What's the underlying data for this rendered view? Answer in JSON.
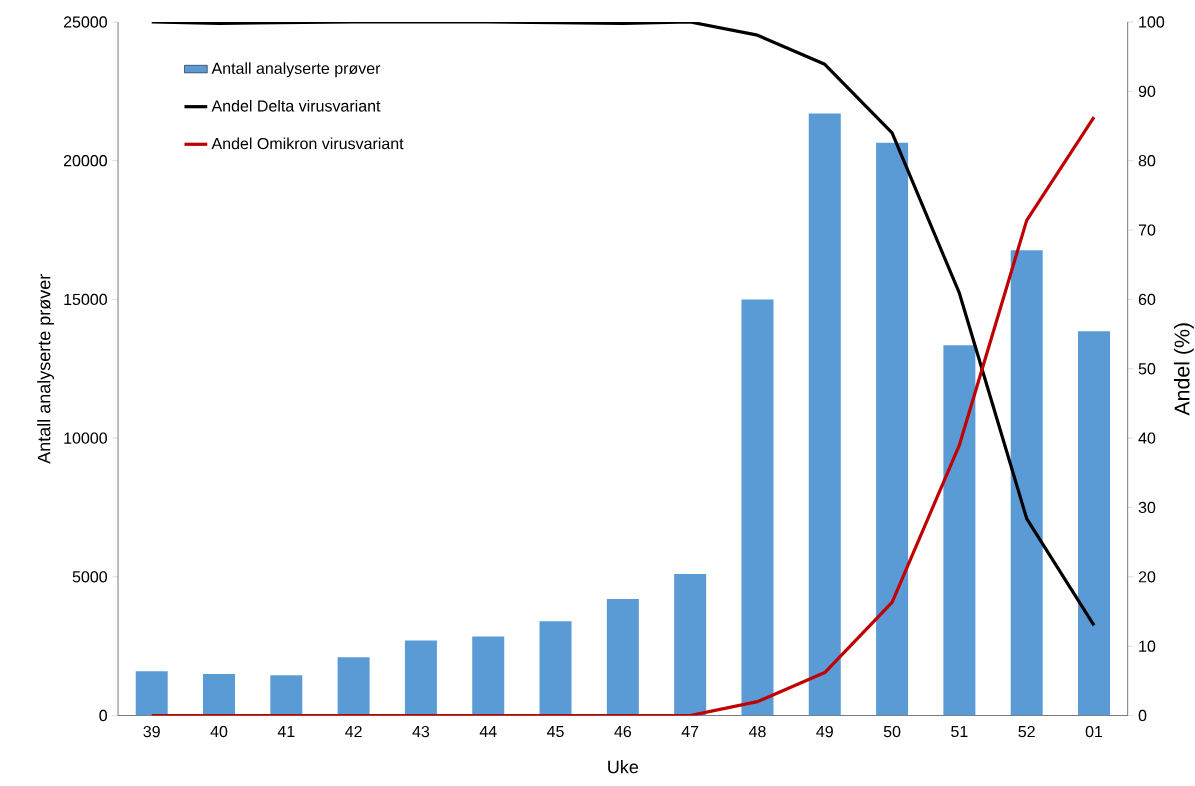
{
  "chart_data": {
    "type": "bar",
    "xlabel": "Uke",
    "ylabel": "Antall analyserte prøver",
    "y2label": "Andel (%)",
    "categories": [
      "39",
      "40",
      "41",
      "42",
      "43",
      "44",
      "45",
      "46",
      "47",
      "48",
      "49",
      "50",
      "51",
      "52",
      "01"
    ],
    "series": [
      {
        "name": "Antall analyserte prøver",
        "color": "#5b9bd5",
        "values": [
          1600,
          1500,
          1450,
          2100,
          2700,
          2850,
          3400,
          4200,
          5100,
          15000,
          21700,
          20650,
          13350,
          16770,
          13850
        ]
      },
      {
        "name": "Andel Delta virusvariant",
        "type": "line",
        "axis": "y2",
        "color": "#000000",
        "values": [
          100,
          99.8,
          99.9,
          100,
          100,
          100,
          99.9,
          99.8,
          100,
          98.1,
          93.9,
          84,
          60.9,
          28.4,
          13
        ]
      },
      {
        "name": "Andel Omikron virusvariant",
        "type": "line",
        "axis": "y2",
        "color": "#c00000",
        "values": [
          0,
          0,
          0,
          0,
          0,
          0,
          0,
          0,
          0,
          2,
          6.2,
          16.3,
          39,
          71.4,
          86.3
        ]
      }
    ],
    "ylim": [
      0,
      25000
    ],
    "yticks": [
      0,
      5000,
      10000,
      15000,
      20000,
      25000
    ],
    "y2lim": [
      0,
      100
    ],
    "y2ticks": [
      0,
      10,
      20,
      30,
      40,
      50,
      60,
      70,
      80,
      90,
      100
    ],
    "legend": "top left",
    "grid": false,
    "marker": "none",
    "line_style": "solid"
  }
}
